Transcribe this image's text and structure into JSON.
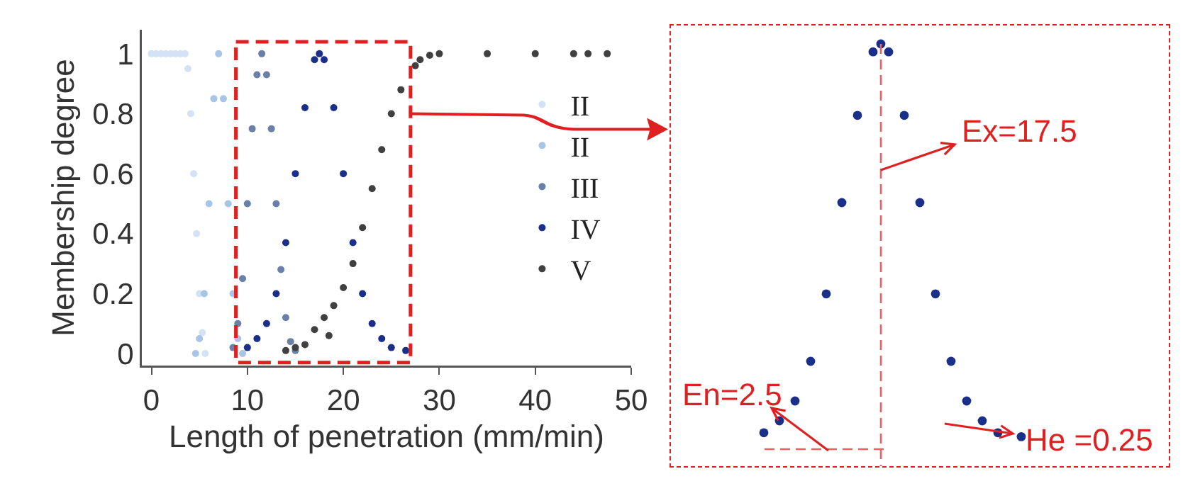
{
  "chart_data": [
    {
      "type": "scatter",
      "xlabel": "Length of penetration (mm/min)",
      "ylabel": "Membership degree",
      "xlim": [
        -1,
        50
      ],
      "ylim": [
        -0.04,
        1.08
      ],
      "xticks": [
        0,
        10,
        20,
        30,
        40,
        50
      ],
      "yticks": [
        0,
        0.2,
        0.4,
        0.6,
        0.8,
        1
      ],
      "marker": "circle",
      "legend": "right",
      "series": [
        {
          "name": "II",
          "color": "#d3e2f4",
          "x": [
            0,
            0.5,
            1,
            1.5,
            2,
            2.5,
            3,
            3.5,
            3.8,
            4.1,
            4.4,
            4.7,
            5,
            5.3,
            5.6
          ],
          "values": [
            1,
            1,
            1,
            1,
            1,
            1,
            1,
            1,
            0.95,
            0.8,
            0.6,
            0.4,
            0.2,
            0.07,
            0
          ]
        },
        {
          "name": "II",
          "color": "#a8c5e8",
          "x": [
            4.6,
            5,
            5.5,
            6,
            6.5,
            7,
            7.5,
            8,
            8.5,
            9,
            9.5
          ],
          "values": [
            0,
            0.05,
            0.2,
            0.5,
            0.85,
            1,
            0.85,
            0.5,
            0.2,
            0.05,
            0
          ]
        },
        {
          "name": "III",
          "color": "#6a80a8",
          "x": [
            8.5,
            9,
            9.5,
            10,
            10.5,
            11,
            11.5,
            12,
            12.5,
            13,
            13.5,
            14,
            14.5,
            15
          ],
          "values": [
            0.02,
            0.1,
            0.25,
            0.5,
            0.75,
            0.93,
            1,
            0.93,
            0.75,
            0.5,
            0.28,
            0.12,
            0.04,
            0.01
          ]
        },
        {
          "name": "IV",
          "color": "#1a2f8a",
          "x": [
            10,
            11,
            12,
            13,
            14,
            15,
            16,
            17,
            17.5,
            18,
            19,
            20,
            21,
            22,
            23,
            24,
            25,
            26.5
          ],
          "values": [
            0.02,
            0.05,
            0.1,
            0.2,
            0.37,
            0.6,
            0.82,
            0.98,
            1,
            0.98,
            0.82,
            0.6,
            0.37,
            0.2,
            0.1,
            0.05,
            0.02,
            0.01
          ]
        },
        {
          "name": "V",
          "color": "#404040",
          "x": [
            14,
            15,
            16,
            17,
            18,
            18.5,
            19,
            20,
            21,
            22,
            23,
            24,
            25,
            26,
            27.5,
            28,
            29,
            30,
            35,
            40,
            44,
            45.5,
            47.5
          ],
          "values": [
            0.01,
            0.02,
            0.03,
            0.08,
            0.12,
            0.06,
            0.16,
            0.22,
            0.3,
            0.42,
            0.55,
            0.68,
            0.8,
            0.88,
            0.96,
            0.98,
            0.995,
            1,
            1,
            1,
            1,
            1,
            1
          ]
        }
      ]
    },
    {
      "type": "other",
      "annotations": [
        "Ex=17.5",
        "En=2.5",
        "He =0.25"
      ]
    }
  ]
}
